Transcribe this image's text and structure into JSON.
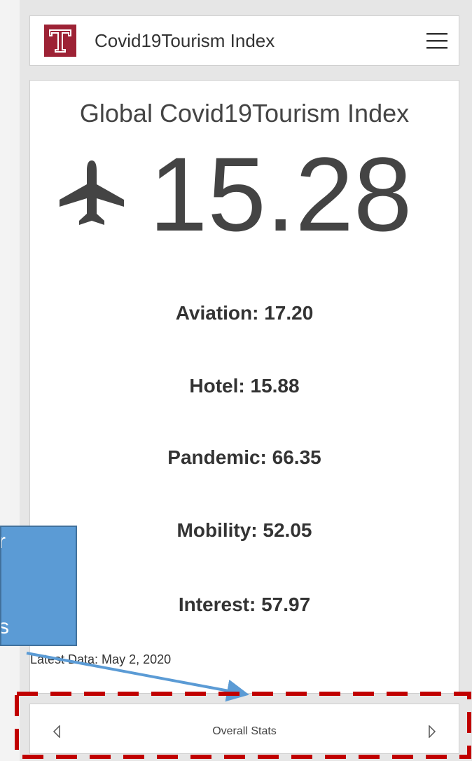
{
  "header": {
    "title": "Covid19Tourism Index"
  },
  "card": {
    "title": "Global Covid19Tourism Index",
    "index_value": "15.28",
    "stats": [
      "Aviation: 17.20",
      "Hotel: 15.88",
      "Pandemic: 66.35",
      "Mobility: 52.05",
      "Interest: 57.97"
    ],
    "latest": "Latest Data: May 2, 2020"
  },
  "nav": {
    "label": "Overall Stats"
  },
  "callout": {
    "lines": [
      "r",
      "s"
    ]
  }
}
